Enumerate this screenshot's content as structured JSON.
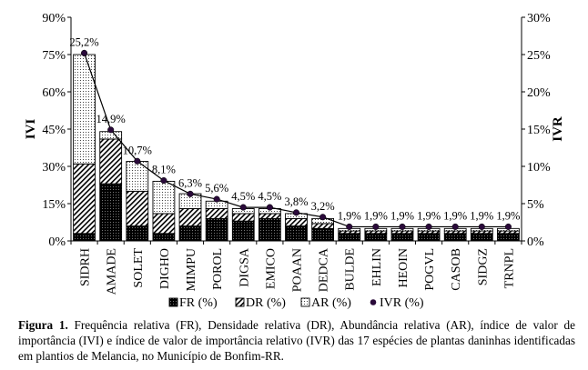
{
  "chart_data": {
    "type": "bar",
    "stacked": true,
    "categories": [
      "SIDRH",
      "AMADE",
      "SOLET",
      "DIGHO",
      "MIMPU",
      "POROL",
      "DIGSA",
      "EMICO",
      "POAAN",
      "DEDCA",
      "BULDE",
      "EHLIN",
      "HEOIN",
      "POGVL",
      "CASOB",
      "SIDGZ",
      "TRNPL"
    ],
    "series": [
      {
        "name": "FR (%)",
        "axis": "left",
        "color": "#000000",
        "values": [
          3,
          23,
          6,
          3,
          6,
          9,
          8,
          9,
          6,
          5,
          3,
          3,
          3,
          3,
          3,
          3,
          3
        ]
      },
      {
        "name": "DR (%)",
        "axis": "left",
        "color": "#000000",
        "values": [
          28,
          18,
          14,
          8,
          7,
          4,
          3,
          2,
          3,
          2,
          1,
          1,
          1,
          1,
          1,
          1,
          1
        ]
      },
      {
        "name": "AR (%)",
        "axis": "left",
        "color": "#000000",
        "values": [
          44,
          3,
          12,
          13,
          6,
          3,
          2,
          2,
          2,
          2,
          1,
          1,
          1,
          1,
          1,
          1,
          1
        ]
      },
      {
        "name": "IVR (%)",
        "axis": "right",
        "type": "line",
        "color": "#000000",
        "values": [
          25.2,
          14.9,
          10.7,
          8.1,
          6.3,
          5.6,
          4.5,
          4.5,
          3.8,
          3.2,
          1.9,
          1.9,
          1.9,
          1.9,
          1.9,
          1.9,
          1.9
        ]
      }
    ],
    "data_labels": [
      "25,2%",
      "14,9%",
      "10,7%",
      "8,1%",
      "6,3%",
      "5,6%",
      "4,5%",
      "4,5%",
      "3,8%",
      "3,2%",
      "1,9%",
      "1,9%",
      "1,9%",
      "1,9%",
      "1,9%",
      "1,9%",
      "1,9%"
    ],
    "ylabel": "IVI",
    "y2label": "IVR",
    "ylim": [
      0,
      90
    ],
    "y2lim": [
      0,
      30
    ],
    "yticks": [
      "0%",
      "15%",
      "30%",
      "45%",
      "60%",
      "75%",
      "90%"
    ],
    "y2ticks": [
      "0%",
      "5%",
      "10%",
      "15%",
      "20%",
      "25%",
      "30%"
    ],
    "legend_placement": "bottom",
    "grid": false
  },
  "caption": {
    "label": "Figura 1.",
    "text": " Frequência relativa (FR), Densidade relativa (DR), Abundância relativa (AR), índice de valor de importância (IVI) e índice de valor de importância relativo (IVR) das 17 espécies de plantas daninhas identificadas em plantios de Melancia, no Município de Bonfim-RR."
  }
}
